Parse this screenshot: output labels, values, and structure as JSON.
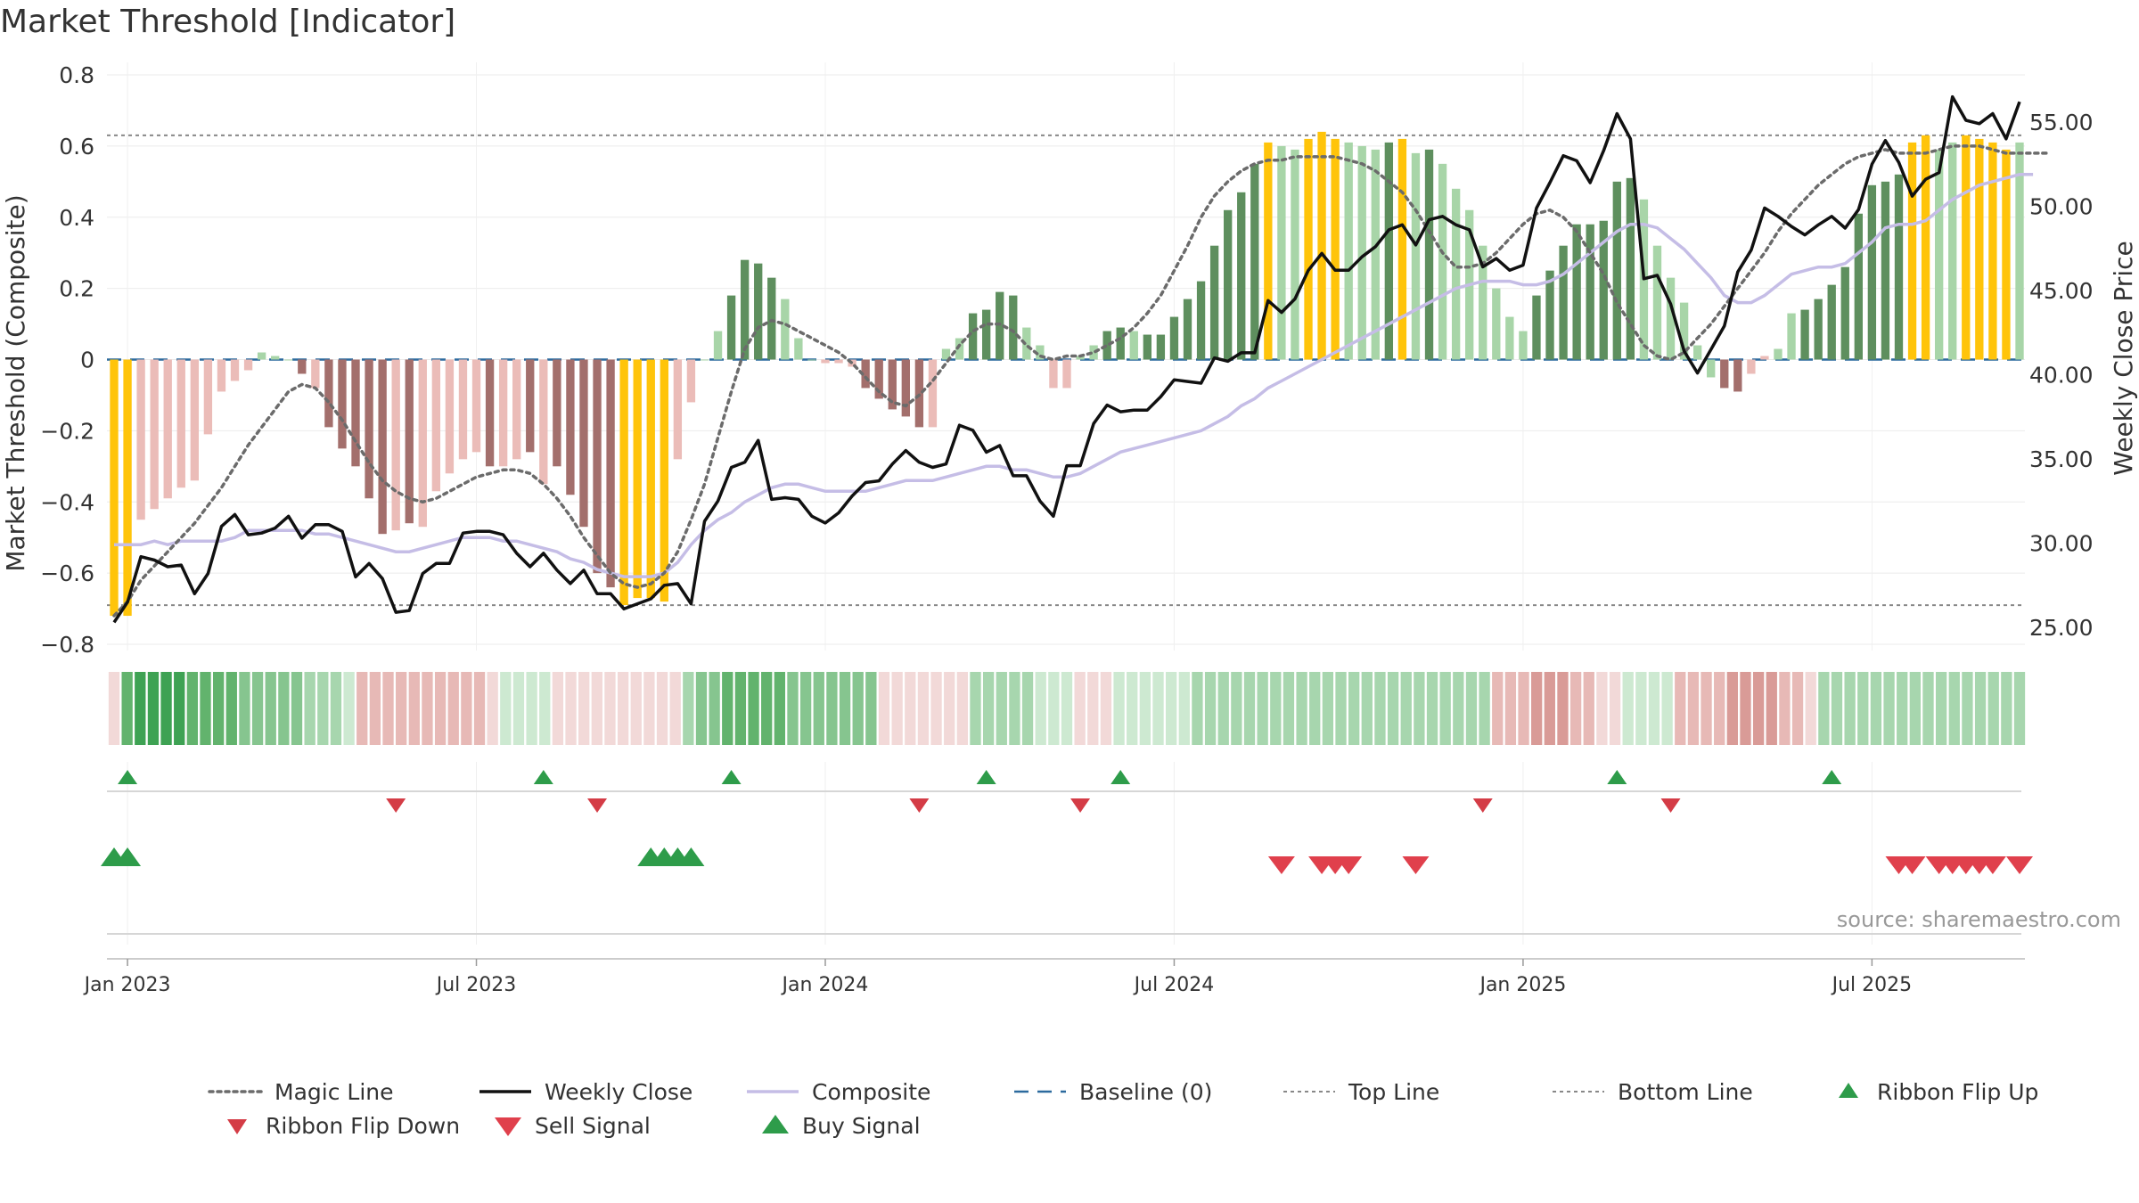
{
  "chart_data": {
    "type": "bar",
    "title": "Market Threshold [Indicator]",
    "ylabel_left": "Market Threshold (Composite)",
    "ylabel_right": "Weekly Close Price",
    "watermark": "source: sharemaestro.com",
    "y_left": {
      "range": [
        -0.8,
        0.8
      ],
      "ticks": [
        "0.8",
        "0.6",
        "0.4",
        "0.2",
        "0",
        "−0.2",
        "−0.4",
        "−0.6",
        "−0.8"
      ]
    },
    "y_right": {
      "range": [
        24.0,
        57.8
      ],
      "ticks": [
        "55.00",
        "50.00",
        "45.00",
        "40.00",
        "35.00",
        "30.00",
        "25.00"
      ]
    },
    "x_ticks": [
      {
        "label": "Jan 2023",
        "week": 1
      },
      {
        "label": "Jul 2023",
        "week": 27
      },
      {
        "label": "Jan 2024",
        "week": 53
      },
      {
        "label": "Jul 2024",
        "week": 79
      },
      {
        "label": "Jan 2025",
        "week": 105
      },
      {
        "label": "Jul 2025",
        "week": 131
      }
    ],
    "grid": true,
    "legend_position": "bottom",
    "top_line": 0.63,
    "bottom_line": -0.69,
    "baseline": 0,
    "colors": {
      "strong_bull": "#5e8f5e",
      "weak_bull": "#a8d5a8",
      "strong_bear": "#a36f6c",
      "weak_bear": "#ebbcb8",
      "extreme": "#ffc40a",
      "close": "#111111",
      "composite": "#c5bde6",
      "magic": "#6b6b6b",
      "baseline": "#2c6a9e",
      "thresholds": "#888888",
      "up": "#2e9c4a",
      "down": "#d43c46"
    },
    "composite_bars": [
      -0.72,
      -0.72,
      -0.45,
      -0.42,
      -0.39,
      -0.36,
      -0.34,
      -0.21,
      -0.09,
      -0.06,
      -0.03,
      0.02,
      0.01,
      0,
      -0.04,
      -0.08,
      -0.19,
      -0.25,
      -0.3,
      -0.39,
      -0.49,
      -0.48,
      -0.46,
      -0.47,
      -0.37,
      -0.32,
      -0.28,
      -0.26,
      -0.3,
      -0.3,
      -0.28,
      -0.26,
      -0.35,
      -0.3,
      -0.38,
      -0.47,
      -0.6,
      -0.64,
      -0.69,
      -0.67,
      -0.67,
      -0.68,
      -0.28,
      -0.12,
      0,
      0.08,
      0.18,
      0.28,
      0.27,
      0.23,
      0.17,
      0.06,
      0,
      -0.01,
      -0.01,
      -0.02,
      -0.08,
      -0.11,
      -0.14,
      -0.16,
      -0.19,
      -0.19,
      0.03,
      0.06,
      0.13,
      0.14,
      0.19,
      0.18,
      0.09,
      0.04,
      -0.08,
      -0.08,
      0.01,
      0.04,
      0.08,
      0.09,
      0.08,
      0.07,
      0.07,
      0.12,
      0.17,
      0.22,
      0.32,
      0.42,
      0.47,
      0.55,
      0.61,
      0.6,
      0.59,
      0.62,
      0.64,
      0.62,
      0.61,
      0.6,
      0.59,
      0.61,
      0.62,
      0.58,
      0.59,
      0.55,
      0.48,
      0.42,
      0.32,
      0.2,
      0.12,
      0.08,
      0.18,
      0.25,
      0.32,
      0.38,
      0.38,
      0.39,
      0.5,
      0.51,
      0.45,
      0.32,
      0.23,
      0.16,
      0.04,
      -0.05,
      -0.08,
      -0.09,
      -0.04,
      0.01,
      0.03,
      0.13,
      0.14,
      0.17,
      0.21,
      0.26,
      0.41,
      0.49,
      0.5,
      0.52,
      0.61,
      0.63,
      0.59,
      0.61,
      0.63,
      0.62,
      0.61,
      0.59,
      0.61
    ],
    "composite_bar_classes": [
      "extreme",
      "extreme",
      "weak_bear",
      "weak_bear",
      "weak_bear",
      "weak_bear",
      "weak_bear",
      "weak_bear",
      "weak_bear",
      "weak_bear",
      "weak_bear",
      "weak_bull",
      "weak_bull",
      "weak_bull",
      "strong_bear",
      "weak_bear",
      "strong_bear",
      "strong_bear",
      "strong_bear",
      "strong_bear",
      "strong_bear",
      "weak_bear",
      "strong_bear",
      "weak_bear",
      "weak_bear",
      "weak_bear",
      "weak_bear",
      "weak_bear",
      "strong_bear",
      "weak_bear",
      "weak_bear",
      "strong_bear",
      "weak_bear",
      "strong_bear",
      "strong_bear",
      "strong_bear",
      "strong_bear",
      "strong_bear",
      "extreme",
      "extreme",
      "extreme",
      "extreme",
      "weak_bear",
      "weak_bear",
      "weak_bull",
      "weak_bull",
      "strong_bull",
      "strong_bull",
      "strong_bull",
      "strong_bull",
      "weak_bull",
      "weak_bull",
      "weak_bull",
      "weak_bear",
      "weak_bear",
      "weak_bear",
      "strong_bear",
      "strong_bear",
      "strong_bear",
      "strong_bear",
      "strong_bear",
      "weak_bear",
      "weak_bull",
      "weak_bull",
      "strong_bull",
      "strong_bull",
      "strong_bull",
      "strong_bull",
      "weak_bull",
      "weak_bull",
      "weak_bear",
      "weak_bear",
      "weak_bull",
      "weak_bull",
      "strong_bull",
      "strong_bull",
      "weak_bull",
      "strong_bull",
      "strong_bull",
      "strong_bull",
      "strong_bull",
      "strong_bull",
      "strong_bull",
      "strong_bull",
      "strong_bull",
      "strong_bull",
      "extreme",
      "weak_bull",
      "weak_bull",
      "extreme",
      "extreme",
      "extreme",
      "weak_bull",
      "weak_bull",
      "weak_bull",
      "strong_bull",
      "extreme",
      "weak_bull",
      "strong_bull",
      "weak_bull",
      "weak_bull",
      "weak_bull",
      "weak_bull",
      "weak_bull",
      "weak_bull",
      "weak_bull",
      "strong_bull",
      "strong_bull",
      "strong_bull",
      "strong_bull",
      "strong_bull",
      "strong_bull",
      "strong_bull",
      "strong_bull",
      "weak_bull",
      "weak_bull",
      "weak_bull",
      "weak_bull",
      "weak_bull",
      "weak_bull",
      "strong_bear",
      "strong_bear",
      "weak_bear",
      "weak_bear",
      "weak_bull",
      "weak_bull",
      "strong_bull",
      "strong_bull",
      "strong_bull",
      "strong_bull",
      "strong_bull",
      "strong_bull",
      "strong_bull",
      "strong_bull",
      "extreme",
      "extreme",
      "weak_bull",
      "weak_bull",
      "extreme",
      "extreme",
      "extreme",
      "extreme",
      "weak_bull",
      "extreme"
    ],
    "composite_line": [
      -0.52,
      -0.52,
      -0.52,
      -0.51,
      -0.52,
      -0.51,
      -0.51,
      -0.51,
      -0.51,
      -0.5,
      -0.48,
      -0.48,
      -0.48,
      -0.48,
      -0.48,
      -0.49,
      -0.49,
      -0.5,
      -0.51,
      -0.52,
      -0.53,
      -0.54,
      -0.54,
      -0.53,
      -0.52,
      -0.51,
      -0.5,
      -0.5,
      -0.5,
      -0.51,
      -0.51,
      -0.52,
      -0.53,
      -0.54,
      -0.56,
      -0.57,
      -0.59,
      -0.6,
      -0.61,
      -0.61,
      -0.61,
      -0.6,
      -0.57,
      -0.52,
      -0.48,
      -0.45,
      -0.43,
      -0.4,
      -0.38,
      -0.36,
      -0.35,
      -0.35,
      -0.36,
      -0.37,
      -0.37,
      -0.37,
      -0.37,
      -0.36,
      -0.35,
      -0.34,
      -0.34,
      -0.34,
      -0.33,
      -0.32,
      -0.31,
      -0.3,
      -0.3,
      -0.31,
      -0.31,
      -0.32,
      -0.33,
      -0.33,
      -0.32,
      -0.3,
      -0.28,
      -0.26,
      -0.25,
      -0.24,
      -0.23,
      -0.22,
      -0.21,
      -0.2,
      -0.18,
      -0.16,
      -0.13,
      -0.11,
      -0.08,
      -0.06,
      -0.04,
      -0.02,
      0.0,
      0.02,
      0.04,
      0.06,
      0.08,
      0.1,
      0.12,
      0.14,
      0.16,
      0.18,
      0.2,
      0.21,
      0.22,
      0.22,
      0.22,
      0.21,
      0.21,
      0.22,
      0.24,
      0.27,
      0.3,
      0.33,
      0.36,
      0.38,
      0.38,
      0.37,
      0.34,
      0.31,
      0.27,
      0.23,
      0.18,
      0.16,
      0.16,
      0.18,
      0.21,
      0.24,
      0.25,
      0.26,
      0.26,
      0.27,
      0.3,
      0.33,
      0.37,
      0.38,
      0.38,
      0.39,
      0.42,
      0.45,
      0.47,
      0.49,
      0.5,
      0.51,
      0.52,
      0.52
    ],
    "magic_line": [
      -0.72,
      -0.68,
      -0.62,
      -0.58,
      -0.54,
      -0.5,
      -0.46,
      -0.41,
      -0.36,
      -0.3,
      -0.24,
      -0.19,
      -0.14,
      -0.09,
      -0.07,
      -0.08,
      -0.12,
      -0.17,
      -0.23,
      -0.29,
      -0.34,
      -0.37,
      -0.39,
      -0.4,
      -0.39,
      -0.37,
      -0.35,
      -0.33,
      -0.32,
      -0.31,
      -0.31,
      -0.32,
      -0.35,
      -0.39,
      -0.44,
      -0.5,
      -0.55,
      -0.6,
      -0.63,
      -0.64,
      -0.63,
      -0.6,
      -0.54,
      -0.45,
      -0.35,
      -0.22,
      -0.09,
      0.03,
      0.09,
      0.11,
      0.1,
      0.08,
      0.06,
      0.04,
      0.02,
      -0.01,
      -0.05,
      -0.09,
      -0.12,
      -0.13,
      -0.1,
      -0.06,
      -0.01,
      0.04,
      0.08,
      0.1,
      0.1,
      0.08,
      0.04,
      0.01,
      0.0,
      0.01,
      0.01,
      0.02,
      0.04,
      0.06,
      0.09,
      0.13,
      0.18,
      0.25,
      0.32,
      0.4,
      0.46,
      0.5,
      0.53,
      0.55,
      0.56,
      0.56,
      0.57,
      0.57,
      0.57,
      0.57,
      0.56,
      0.55,
      0.53,
      0.5,
      0.47,
      0.42,
      0.36,
      0.3,
      0.26,
      0.26,
      0.27,
      0.3,
      0.34,
      0.38,
      0.41,
      0.42,
      0.4,
      0.36,
      0.3,
      0.24,
      0.16,
      0.1,
      0.04,
      0.01,
      0.0,
      0.02,
      0.06,
      0.1,
      0.15,
      0.2,
      0.25,
      0.3,
      0.36,
      0.41,
      0.45,
      0.49,
      0.52,
      0.55,
      0.57,
      0.58,
      0.59,
      0.58,
      0.58,
      0.58,
      0.59,
      0.6,
      0.6,
      0.6,
      0.59,
      0.58,
      0.58,
      0.58,
      0.58
    ],
    "weekly_close": [
      25.3,
      26.5,
      29.2,
      29.0,
      28.6,
      28.7,
      27.0,
      28.2,
      31.0,
      31.7,
      30.5,
      30.6,
      30.9,
      31.6,
      30.3,
      31.1,
      31.1,
      30.7,
      28.0,
      28.8,
      27.9,
      25.9,
      26.0,
      28.2,
      28.8,
      28.8,
      30.6,
      30.7,
      30.7,
      30.5,
      29.4,
      28.6,
      29.4,
      28.4,
      27.6,
      28.4,
      27.0,
      27.0,
      26.1,
      26.4,
      26.7,
      27.5,
      27.6,
      26.4,
      31.3,
      32.5,
      34.5,
      34.8,
      36.1,
      32.6,
      32.7,
      32.6,
      31.6,
      31.2,
      31.8,
      32.8,
      33.6,
      33.7,
      34.7,
      35.5,
      34.8,
      34.5,
      34.7,
      37.0,
      36.7,
      35.4,
      35.8,
      34.0,
      34.0,
      32.5,
      31.6,
      34.6,
      34.6,
      37.1,
      38.2,
      37.8,
      37.9,
      37.9,
      38.7,
      39.7,
      39.6,
      39.5,
      41.0,
      40.8,
      41.3,
      41.3,
      44.4,
      43.7,
      44.5,
      46.2,
      47.2,
      46.2,
      46.2,
      47.0,
      47.6,
      48.6,
      48.9,
      47.7,
      49.2,
      49.4,
      48.9,
      48.6,
      46.4,
      46.9,
      46.2,
      46.5,
      49.9,
      51.4,
      53.0,
      52.7,
      51.4,
      53.3,
      55.5,
      54.0,
      45.7,
      45.9,
      44.2,
      41.4,
      40.1,
      41.5,
      42.9,
      46.1,
      47.4,
      49.9,
      49.4,
      48.8,
      48.3,
      48.9,
      49.4,
      48.7,
      49.8,
      52.5,
      53.9,
      52.6,
      50.6,
      51.6,
      52.0,
      56.5,
      55.1,
      54.9,
      55.5,
      54.0,
      56.2
    ]
  },
  "sell_signal_weeks": [],
  "bottom_axis_line_week": 0,
  "ribbon": {
    "cells": [
      "bear1",
      "bull4",
      "bull5",
      "bull5",
      "bull5",
      "bull5",
      "bull4",
      "bull4",
      "bull4",
      "bull4",
      "bull3",
      "bull3",
      "bull3",
      "bull3",
      "bull3",
      "bull2",
      "bull2",
      "bull2",
      "bull1",
      "bear2",
      "bear2",
      "bear2",
      "bear2",
      "bear2",
      "bear2",
      "bear2",
      "bear2",
      "bear2",
      "bear2",
      "bear1",
      "bull1",
      "bull1",
      "bull1",
      "bull1",
      "bear1",
      "bear1",
      "bear1",
      "bear1",
      "bear1",
      "bear1",
      "bear1",
      "bear1",
      "bear1",
      "bear1",
      "bull2",
      "bull3",
      "bull3",
      "bull4",
      "bull4",
      "bull4",
      "bull4",
      "bull4",
      "bull3",
      "bull3",
      "bull3",
      "bull3",
      "bull3",
      "bull3",
      "bull3",
      "bear1",
      "bear1",
      "bear1",
      "bear1",
      "bear1",
      "bear1",
      "bear1",
      "bull2",
      "bull2",
      "bull2",
      "bull2",
      "bull2",
      "bull1",
      "bull1",
      "bull1",
      "bear1",
      "bear1",
      "bear1",
      "bull1",
      "bull1",
      "bull1",
      "bull1",
      "bull1",
      "bull1",
      "bull2",
      "bull2",
      "bull2",
      "bull2",
      "bull2",
      "bull2",
      "bull2",
      "bull2",
      "bull2",
      "bull2",
      "bull2",
      "bull2",
      "bull2",
      "bull2",
      "bull2",
      "bull2",
      "bull2",
      "bull2",
      "bull2",
      "bull2",
      "bull2",
      "bull2",
      "bull2",
      "bear2",
      "bear2",
      "bear2",
      "bear3",
      "bear3",
      "bear3",
      "bear2",
      "bear2",
      "bear1",
      "bear1",
      "bull1",
      "bull1",
      "bull1",
      "bull1",
      "bear2",
      "bear2",
      "bear2",
      "bear2",
      "bear3",
      "bear3",
      "bear3",
      "bear3",
      "bear2",
      "bear2",
      "bear1",
      "bull2",
      "bull2",
      "bull2",
      "bull2",
      "bull2",
      "bull2",
      "bull2",
      "bull2",
      "bull2",
      "bull2",
      "bull2",
      "bull2",
      "bull2",
      "bull2",
      "bull2",
      "bull2"
    ],
    "colors": {
      "bull1": "#cde9d1",
      "bull2": "#a7d6ae",
      "bull3": "#86c58f",
      "bull4": "#62b36d",
      "bull5": "#3ea253",
      "bear1": "#f2d9d8",
      "bear2": "#e7b9b6",
      "bear3": "#d99b97"
    }
  },
  "flips_up_weeks": [
    1,
    32,
    46,
    65,
    75,
    112,
    128
  ],
  "flips_down_weeks": [
    21,
    36,
    60,
    72,
    102,
    116
  ],
  "buy_signal_weeks": [
    0,
    1,
    40,
    41,
    42,
    43
  ],
  "sell_signal_weeks_row": [
    87,
    90,
    91,
    92,
    97,
    133,
    134,
    136,
    137,
    138,
    139,
    140,
    142
  ],
  "legend": {
    "items": [
      {
        "label": "Magic Line",
        "type": "dotted",
        "color": "#6b6b6b"
      },
      {
        "label": "Weekly Close",
        "type": "solid",
        "color": "#111111"
      },
      {
        "label": "Composite",
        "type": "solid",
        "color": "#c5bde6"
      },
      {
        "label": "Baseline (0)",
        "type": "dashed",
        "color": "#2c6a9e"
      },
      {
        "label": "Top Line",
        "type": "fine-dotted",
        "color": "#888888"
      },
      {
        "label": "Bottom Line",
        "type": "fine-dotted",
        "color": "#888888"
      },
      {
        "label": "Ribbon Flip Up",
        "type": "tri-up",
        "color": "#2e9c4a"
      },
      {
        "label": "Ribbon Flip Down",
        "type": "tri-down",
        "color": "#d43c46"
      },
      {
        "label": "Sell Signal",
        "type": "tri-down-big",
        "color": "#e0404c"
      },
      {
        "label": "Buy Signal",
        "type": "tri-up-big",
        "color": "#2e9c4a"
      }
    ]
  }
}
